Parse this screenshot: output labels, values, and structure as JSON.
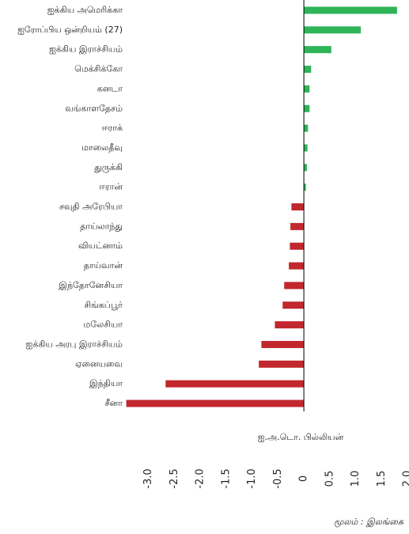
{
  "chart_data": {
    "type": "barh",
    "categories": [
      "ஐக்கிய அமெரிக்கா",
      "ஐரோப்பிய ஒன்றியம் (27)",
      "ஐக்கிய இராச்சியம்",
      "மெக்சிக்கோ",
      "கனடா",
      "வங்காளதேசம்",
      "ஈராக்",
      "மாலைதீவு",
      "துருக்கி",
      "ஈரான்",
      "சவுதி அரேபியா",
      "தாய்லாந்து",
      "வியட்னாம்",
      "தாய்வான்",
      "இந்தோனேசியா",
      "சிங்கப்பூர்",
      "மலேசியா",
      "ஐக்கிய அரபு இராச்சியம்",
      "ஏனையவை",
      "இந்தியா",
      "சீனா"
    ],
    "values": [
      1.8,
      1.1,
      0.53,
      0.14,
      0.11,
      0.11,
      0.08,
      0.07,
      0.06,
      0.04,
      -0.24,
      -0.26,
      -0.27,
      -0.29,
      -0.38,
      -0.41,
      -0.56,
      -0.82,
      -0.87,
      -2.67,
      -3.43
    ],
    "positive_color": "#2fb457",
    "negative_color": "#c1272d",
    "xlim": [
      -3.5,
      2.0
    ],
    "xticks": [
      {
        "value": -3,
        "label": "-3.0"
      },
      -2.5,
      {
        "value": -2,
        "label": "-2.0"
      },
      -1.5,
      {
        "value": -1,
        "label": "-1.0"
      },
      -0.5,
      0,
      0.5,
      {
        "value": 1,
        "label": "1.0"
      },
      1.5,
      {
        "value": 2,
        "label": "2.0"
      }
    ],
    "x_label": "ஐ.அ.டொ. பில்லியன்",
    "source": "மூலம் : இலங்கை"
  }
}
